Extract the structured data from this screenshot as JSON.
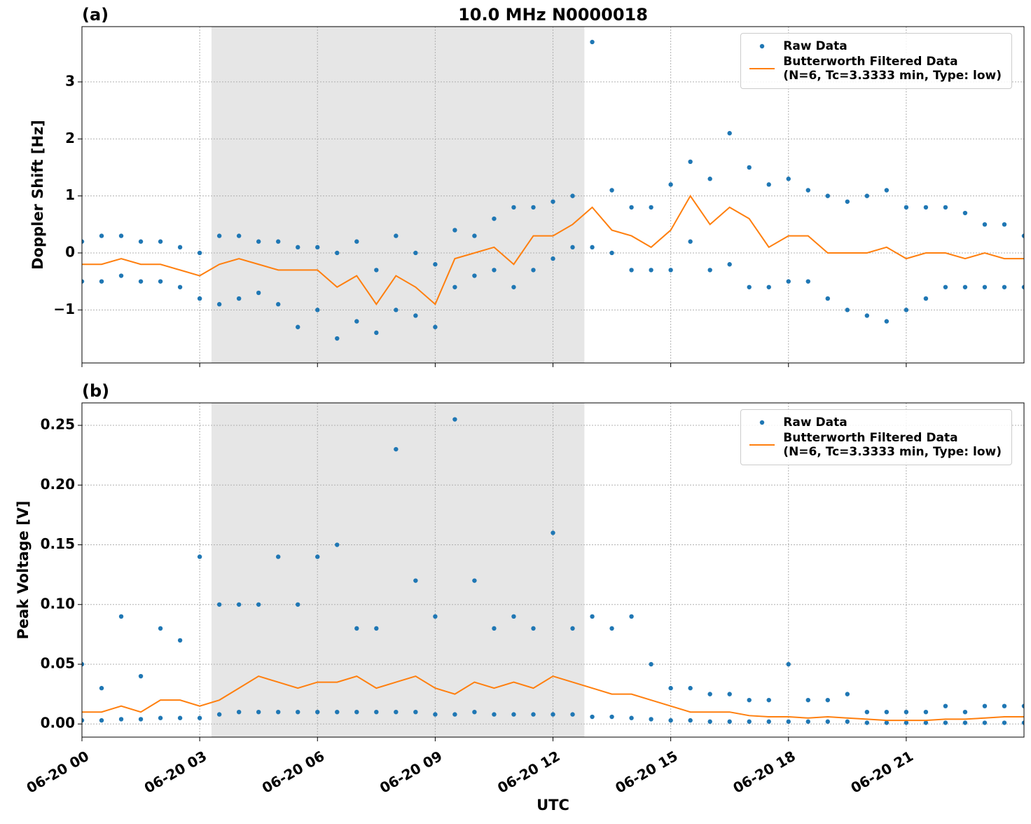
{
  "chart_data": [
    {
      "type": "line",
      "title": "10.0 MHz N0000018",
      "panel_label": "(a)",
      "ylabel": "Doppler Shift [Hz]",
      "xlim": [
        0,
        24
      ],
      "xticks": [
        0,
        3,
        6,
        9,
        12,
        15,
        18,
        21
      ],
      "show_xticklabels": false,
      "ylim": [
        -1.93,
        3.97
      ],
      "yticks": [
        {
          "value": -1,
          "label": "−1"
        },
        0,
        1,
        2,
        3
      ],
      "grid": true,
      "shaded_span": [
        3.3,
        12.8
      ],
      "shade_color": "#e6e6e6",
      "legend": "upper right",
      "x": [
        0,
        0.5,
        1,
        1.5,
        2,
        2.5,
        3,
        3.5,
        4,
        4.5,
        5,
        5.5,
        6,
        6.5,
        7,
        7.5,
        8,
        8.5,
        9,
        9.5,
        10,
        10.5,
        11,
        11.5,
        12,
        12.5,
        13,
        13.5,
        14,
        14.5,
        15,
        15.5,
        16,
        16.5,
        17,
        17.5,
        18,
        18.5,
        19,
        19.5,
        20,
        20.5,
        21,
        21.5,
        22,
        22.5,
        23,
        23.5,
        24
      ],
      "series": [
        {
          "name": "Raw Data",
          "kind": "scatter",
          "color": "#1f77b4",
          "x": [
            0,
            0.5,
            1,
            1.5,
            2,
            2.5,
            3,
            3.5,
            4,
            4.5,
            5,
            5.5,
            6,
            6.5,
            7,
            7.5,
            8,
            8.5,
            9,
            9.5,
            10,
            10.5,
            11,
            11.5,
            12,
            12.5,
            13,
            13.5,
            14,
            14.5,
            15,
            15.5,
            16,
            16.5,
            17,
            17.5,
            18,
            18.5,
            19,
            19.5,
            20,
            20.5,
            21,
            21.5,
            22,
            22.5,
            23,
            23.5,
            24,
            0,
            0.5,
            1,
            1.5,
            2,
            2.5,
            3,
            3.5,
            4,
            4.5,
            5,
            5.5,
            6,
            6.5,
            7,
            7.5,
            8,
            8.5,
            9,
            9.5,
            10,
            10.5,
            11,
            11.5,
            12,
            12.5,
            13,
            13.5,
            14,
            14.5,
            15,
            15.5,
            16,
            16.5,
            17,
            17.5,
            18,
            18.5,
            19,
            19.5,
            20,
            20.5,
            21,
            21.5,
            22,
            22.5,
            23,
            23.5,
            24
          ],
          "values": [
            0.2,
            0.3,
            0.3,
            0.2,
            0.2,
            0.1,
            0.0,
            0.3,
            0.3,
            0.2,
            0.2,
            0.1,
            0.1,
            0.0,
            0.2,
            -0.3,
            0.3,
            0.0,
            -0.2,
            0.4,
            0.3,
            0.6,
            0.8,
            0.8,
            0.9,
            1.0,
            3.7,
            1.1,
            0.8,
            0.8,
            1.2,
            1.6,
            1.3,
            2.1,
            1.5,
            1.2,
            1.3,
            1.1,
            1.0,
            0.9,
            1.0,
            1.1,
            0.8,
            0.8,
            0.8,
            0.7,
            0.5,
            0.5,
            0.3,
            -0.5,
            -0.5,
            -0.4,
            -0.5,
            -0.5,
            -0.6,
            -0.8,
            -0.9,
            -0.8,
            -0.7,
            -0.9,
            -1.3,
            -1.0,
            -1.5,
            -1.2,
            -1.4,
            -1.0,
            -1.1,
            -1.3,
            -0.6,
            -0.4,
            -0.3,
            -0.6,
            -0.3,
            -0.1,
            0.1,
            0.1,
            0.0,
            -0.3,
            -0.3,
            -0.3,
            0.2,
            -0.3,
            -0.2,
            -0.6,
            -0.6,
            -0.5,
            -0.5,
            -0.8,
            -1.0,
            -1.1,
            -1.2,
            -1.0,
            -0.8,
            -0.6,
            -0.6,
            -0.6,
            -0.6,
            -0.6
          ]
        },
        {
          "name": "Butterworth Filtered Data\n(N=6, Tc=3.3333 min, Type: low)",
          "kind": "line",
          "color": "#ff7f0e",
          "values": [
            -0.2,
            -0.2,
            -0.1,
            -0.2,
            -0.2,
            -0.3,
            -0.4,
            -0.2,
            -0.1,
            -0.2,
            -0.3,
            -0.3,
            -0.3,
            -0.6,
            -0.4,
            -0.9,
            -0.4,
            -0.6,
            -0.9,
            -0.1,
            0,
            0.1,
            -0.2,
            0.3,
            0.3,
            0.5,
            0.8,
            0.4,
            0.3,
            0.1,
            0.4,
            1.0,
            0.5,
            0.8,
            0.6,
            0.1,
            0.3,
            0.3,
            0.0,
            0.0,
            0.0,
            0.1,
            -0.1,
            0.0,
            0.0,
            -0.1,
            0.0,
            -0.1,
            -0.1
          ]
        }
      ]
    },
    {
      "type": "line",
      "panel_label": "(b)",
      "ylabel": "Peak Voltage [V]",
      "xlabel": "UTC",
      "xlim": [
        0,
        24
      ],
      "xticks": [
        {
          "value": 0,
          "label": "06-20 00"
        },
        {
          "value": 3,
          "label": "06-20 03"
        },
        {
          "value": 6,
          "label": "06-20 06"
        },
        {
          "value": 9,
          "label": "06-20 09"
        },
        {
          "value": 12,
          "label": "06-20 12"
        },
        {
          "value": 15,
          "label": "06-20 15"
        },
        {
          "value": 18,
          "label": "06-20 18"
        },
        {
          "value": 21,
          "label": "06-20 21"
        }
      ],
      "show_xticklabels": true,
      "ylim": [
        -0.011,
        0.2688
      ],
      "yticks": [
        {
          "value": 0,
          "label": "0.00"
        },
        {
          "value": 0.05,
          "label": "0.05"
        },
        {
          "value": 0.1,
          "label": "0.10"
        },
        {
          "value": 0.15,
          "label": "0.15"
        },
        {
          "value": 0.2,
          "label": "0.20"
        },
        {
          "value": 0.25,
          "label": "0.25"
        }
      ],
      "grid": true,
      "shaded_span": [
        3.3,
        12.8
      ],
      "shade_color": "#e6e6e6",
      "legend": "upper right",
      "x": [
        0,
        0.5,
        1,
        1.5,
        2,
        2.5,
        3,
        3.5,
        4,
        4.5,
        5,
        5.5,
        6,
        6.5,
        7,
        7.5,
        8,
        8.5,
        9,
        9.5,
        10,
        10.5,
        11,
        11.5,
        12,
        12.5,
        13,
        13.5,
        14,
        14.5,
        15,
        15.5,
        16,
        16.5,
        17,
        17.5,
        18,
        18.5,
        19,
        19.5,
        20,
        20.5,
        21,
        21.5,
        22,
        22.5,
        23,
        23.5,
        24
      ],
      "series": [
        {
          "name": "Raw Data",
          "kind": "scatter",
          "color": "#1f77b4",
          "x": [
            0,
            0.5,
            1,
            1.5,
            2,
            2.5,
            3,
            3.5,
            4,
            4.5,
            5,
            5.5,
            6,
            6.5,
            7,
            7.5,
            8,
            8.5,
            9,
            9.5,
            10,
            10.5,
            11,
            11.5,
            12,
            12.5,
            13,
            13.5,
            14,
            14.5,
            15,
            15.5,
            16,
            16.5,
            17,
            17.5,
            18,
            18.5,
            19,
            19.5,
            20,
            20.5,
            21,
            21.5,
            22,
            22.5,
            23,
            23.5,
            24,
            0,
            0.5,
            1,
            1.5,
            2,
            2.5,
            3,
            3.5,
            4,
            4.5,
            5,
            5.5,
            6,
            6.5,
            7,
            7.5,
            8,
            8.5,
            9,
            9.5,
            10,
            10.5,
            11,
            11.5,
            12,
            12.5,
            13,
            13.5,
            14,
            14.5,
            15,
            15.5,
            16,
            16.5,
            17,
            17.5,
            18,
            18.5,
            19,
            19.5,
            20,
            20.5,
            21,
            21.5,
            22,
            22.5,
            23,
            23.5,
            24
          ],
          "values": [
            0.05,
            0.03,
            0.09,
            0.04,
            0.08,
            0.07,
            0.14,
            0.1,
            0.1,
            0.1,
            0.14,
            0.1,
            0.14,
            0.15,
            0.08,
            0.08,
            0.23,
            0.12,
            0.09,
            0.255,
            0.12,
            0.08,
            0.09,
            0.08,
            0.16,
            0.08,
            0.09,
            0.08,
            0.09,
            0.05,
            0.03,
            0.03,
            0.025,
            0.025,
            0.02,
            0.02,
            0.05,
            0.02,
            0.02,
            0.025,
            0.01,
            0.01,
            0.01,
            0.01,
            0.015,
            0.01,
            0.015,
            0.015,
            0.015,
            0.003,
            0.003,
            0.004,
            0.004,
            0.005,
            0.005,
            0.005,
            0.008,
            0.01,
            0.01,
            0.01,
            0.01,
            0.01,
            0.01,
            0.01,
            0.01,
            0.01,
            0.01,
            0.008,
            0.008,
            0.01,
            0.008,
            0.008,
            0.008,
            0.008,
            0.008,
            0.006,
            0.006,
            0.005,
            0.004,
            0.003,
            0.003,
            0.002,
            0.002,
            0.002,
            0.002,
            0.002,
            0.002,
            0.002,
            0.002,
            0.001,
            0.001,
            0.001,
            0.001,
            0.001,
            0.001,
            0.001,
            0.001,
            0.001
          ]
        },
        {
          "name": "Butterworth Filtered Data\n(N=6, Tc=3.3333 min, Type: low)",
          "kind": "line",
          "color": "#ff7f0e",
          "values": [
            0.01,
            0.01,
            0.015,
            0.01,
            0.02,
            0.02,
            0.015,
            0.02,
            0.03,
            0.04,
            0.035,
            0.03,
            0.035,
            0.035,
            0.04,
            0.03,
            0.035,
            0.04,
            0.03,
            0.025,
            0.035,
            0.03,
            0.035,
            0.03,
            0.04,
            0.035,
            0.03,
            0.025,
            0.025,
            0.02,
            0.015,
            0.01,
            0.01,
            0.01,
            0.007,
            0.006,
            0.006,
            0.005,
            0.006,
            0.005,
            0.004,
            0.003,
            0.003,
            0.003,
            0.004,
            0.004,
            0.005,
            0.006,
            0.006
          ]
        }
      ]
    }
  ]
}
